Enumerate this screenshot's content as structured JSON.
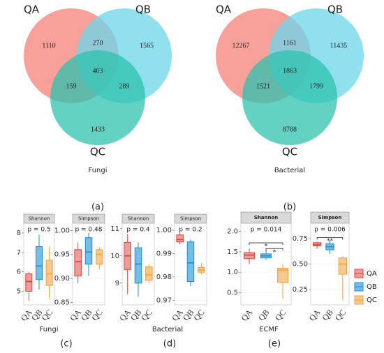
{
  "panel_labels": [
    "(a)",
    "(b)",
    "(c)",
    "(d)",
    "(e)"
  ],
  "legend": {
    "labels": [
      "QA",
      "QB",
      "QC"
    ],
    "colors": [
      "#d9443f",
      "#1f8fcf",
      "#f0a23c"
    ],
    "fills": [
      "#ee9c99",
      "#74bde6",
      "#f7c98e"
    ]
  },
  "chart_data": [
    {
      "type": "venn",
      "sets": [
        "QA",
        "QB",
        "QC"
      ],
      "colors": [
        "#f5817a",
        "#6cd5ea",
        "#2fc3ae"
      ],
      "caption": "Fungi",
      "regions": {
        "QA": 1110,
        "QB": 1565,
        "QC": 1433,
        "QA-QB": 270,
        "QA-QC": 159,
        "QB-QC": 289,
        "QA-QB-QC": 403
      }
    },
    {
      "type": "venn",
      "sets": [
        "QA",
        "QB",
        "QC"
      ],
      "colors": [
        "#f5817a",
        "#6cd5ea",
        "#2fc3ae"
      ],
      "caption": "Bacterial",
      "regions": {
        "QA": 12267,
        "QB": 11435,
        "QC": 8788,
        "QA-QB": 1161,
        "QA-QC": 1521,
        "QB-QC": 1799,
        "QA-QB-QC": 1863
      }
    },
    {
      "type": "box",
      "title": "Shannon",
      "annotation": "p = 0.5",
      "categories": [
        "QA",
        "QB",
        "QC"
      ],
      "ylim": [
        4.3,
        8.5
      ],
      "yticks": [
        5,
        6,
        7,
        8
      ],
      "boxes": [
        {
          "min": 4.5,
          "q1": 5.0,
          "median": 5.5,
          "q3": 5.9,
          "max": 6.0
        },
        {
          "min": 5.1,
          "q1": 5.6,
          "median": 6.3,
          "q3": 7.3,
          "max": 7.9
        },
        {
          "min": 4.6,
          "q1": 5.3,
          "median": 5.9,
          "q3": 6.6,
          "max": 7.3
        }
      ]
    },
    {
      "type": "box",
      "title": "Simpson",
      "annotation": "p = 0.48",
      "categories": [
        "QA",
        "QB",
        "QC"
      ],
      "ylim": [
        0.845,
        1.015
      ],
      "yticks": [
        {
          "value": 0.85,
          "label": "0.85"
        },
        {
          "value": 0.9,
          "label": "0.90"
        },
        0.95,
        {
          "value": 1,
          "label": "1.00"
        }
      ],
      "boxes": [
        {
          "min": 0.89,
          "q1": 0.905,
          "median": 0.935,
          "q3": 0.96,
          "max": 0.975
        },
        {
          "min": 0.905,
          "q1": 0.93,
          "median": 0.955,
          "q3": 0.985,
          "max": 0.995
        },
        {
          "min": 0.92,
          "q1": 0.93,
          "median": 0.95,
          "q3": 0.96,
          "max": 0.965
        }
      ]
    },
    {
      "type": "box",
      "title": "Shannon",
      "annotation": "p = 0.4",
      "categories": [
        "QA",
        "QB",
        "QC"
      ],
      "ylim": [
        8.2,
        11.2
      ],
      "yticks": [
        9,
        10,
        11
      ],
      "boxes": [
        {
          "min": 8.6,
          "q1": 9.5,
          "median": 10.0,
          "q3": 10.5,
          "max": 10.8
        },
        {
          "min": 8.5,
          "q1": 9.0,
          "median": 9.7,
          "q3": 10.3,
          "max": 10.5
        },
        {
          "min": 9.0,
          "q1": 9.1,
          "median": 9.3,
          "q3": 9.6,
          "max": 9.7
        }
      ]
    },
    {
      "type": "box",
      "title": "Simpson",
      "annotation": "p = 0.2",
      "categories": [
        "QA",
        "QB",
        "QC"
      ],
      "ylim": [
        0.968,
        1.003
      ],
      "yticks": [
        0.97,
        0.98,
        0.99,
        {
          "value": 1,
          "label": "1.00"
        }
      ],
      "boxes": [
        {
          "min": 0.994,
          "q1": 0.995,
          "median": 0.996,
          "q3": 0.998,
          "max": 0.999
        },
        {
          "min": 0.976,
          "q1": 0.978,
          "median": 0.986,
          "q3": 0.995,
          "max": 0.996
        },
        {
          "min": 0.981,
          "q1": 0.982,
          "median": 0.983,
          "q3": 0.984,
          "max": 0.986
        }
      ]
    },
    {
      "type": "box",
      "title": "Shannon",
      "annotation": "p = 0.014",
      "categories": [
        "QA",
        "QB",
        "QC"
      ],
      "ylim": [
        0.2,
        2.2
      ],
      "yticks": [
        0.5,
        {
          "value": 1,
          "label": "1.0"
        },
        1.5,
        {
          "value": 2,
          "label": "2.0"
        }
      ],
      "boxes": [
        {
          "min": 1.2,
          "q1": 1.33,
          "median": 1.42,
          "q3": 1.48,
          "max": 1.58
        },
        {
          "min": 1.3,
          "q1": 1.35,
          "median": 1.4,
          "q3": 1.45,
          "max": 1.55
        },
        {
          "min": 0.35,
          "q1": 0.75,
          "median": 1.05,
          "q3": 1.1,
          "max": 1.2
        }
      ],
      "brackets": [
        {
          "from": 0,
          "to": 2,
          "y": 1.72,
          "label": "*"
        },
        {
          "from": 1,
          "to": 2,
          "y": 1.58,
          "label": "*"
        }
      ]
    },
    {
      "type": "box",
      "title": "Simpson",
      "annotation": "p = 0.006",
      "categories": [
        "QA",
        "QB",
        "QC"
      ],
      "ylim": [
        0.1,
        0.9
      ],
      "yticks": [
        {
          "value": 0.25,
          "label": "0.25"
        },
        {
          "value": 0.5,
          "label": "0.50"
        },
        {
          "value": 0.75,
          "label": "0.75"
        }
      ],
      "boxes": [
        {
          "min": 0.65,
          "q1": 0.68,
          "median": 0.69,
          "q3": 0.71,
          "max": 0.72
        },
        {
          "min": 0.6,
          "q1": 0.64,
          "median": 0.67,
          "q3": 0.7,
          "max": 0.73
        },
        {
          "min": 0.15,
          "q1": 0.4,
          "median": 0.5,
          "q3": 0.56,
          "max": 0.58
        }
      ],
      "brackets": [
        {
          "from": 0,
          "to": 2,
          "y": 0.76,
          "label": "**"
        }
      ]
    }
  ],
  "captions": [
    "Fungi",
    "Bacterial",
    "ECMF"
  ]
}
